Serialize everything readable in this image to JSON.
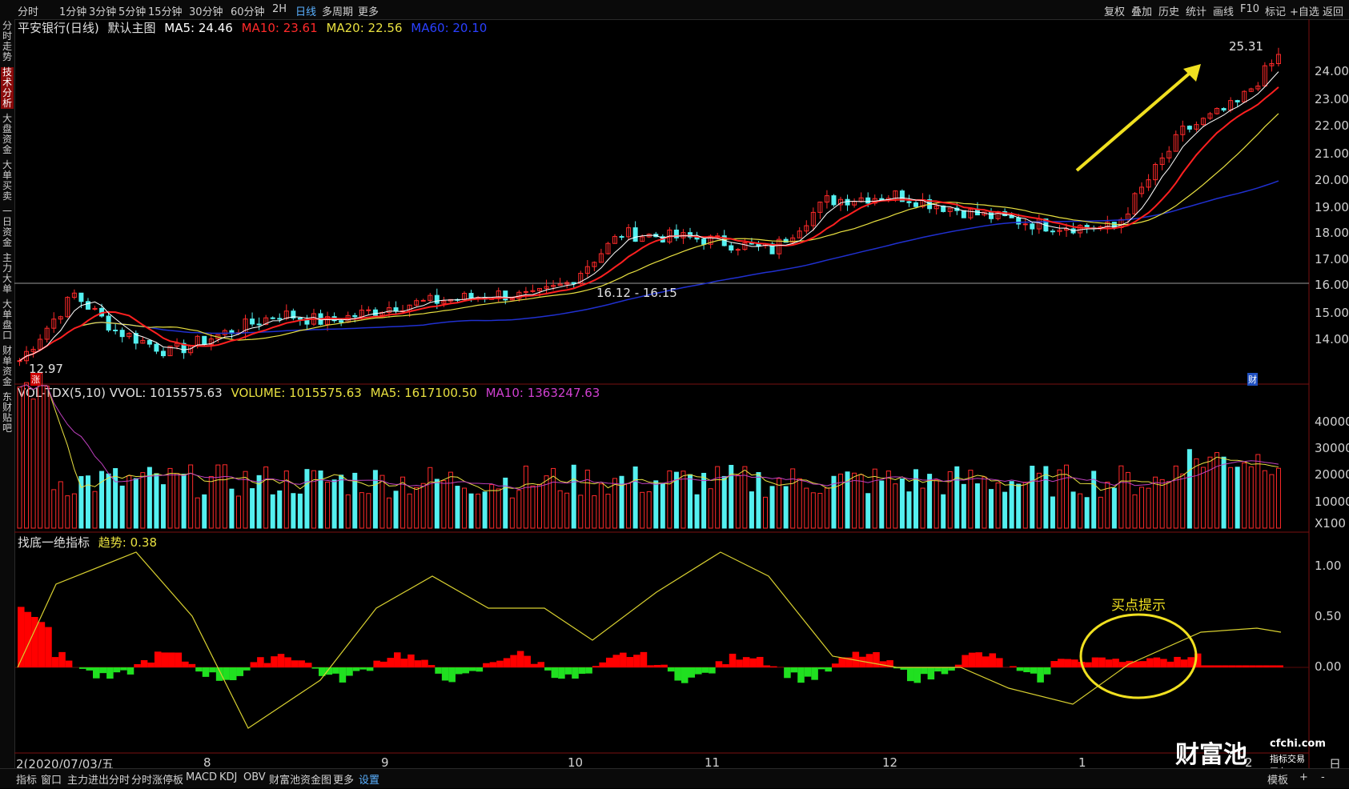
{
  "toolbar": {
    "periods": [
      "分时",
      "1分钟",
      "3分钟",
      "5分钟",
      "15分钟",
      "30分钟",
      "60分钟",
      "2H",
      "日线",
      "多周期",
      "更多"
    ],
    "active_period": "日线",
    "right_items": [
      "复权",
      "叠加",
      "历史",
      "统计",
      "画线",
      "F10",
      "标记",
      "+自选",
      "返回"
    ]
  },
  "left_tabs": [
    "分时走势",
    "技术分析",
    "大盘资金",
    "大单买卖",
    "一日资金",
    "主力大单",
    "大单盘口",
    "财单资金",
    "东财贴吧"
  ],
  "active_left_tab": "技术分析",
  "main_legend": {
    "title": "平安银行(日线)",
    "template": "默认主图",
    "ma5": "MA5: 24.46",
    "ma10": "MA10: 23.61",
    "ma20": "MA20: 22.56",
    "ma60": "MA60: 20.10"
  },
  "vol_legend": {
    "name": "VOL-TDX(5,10) VVOL: 1015575.63",
    "volume": "VOLUME: 1015575.63",
    "ma5": "MA5: 1617100.50",
    "ma10": "MA10: 1363247.63"
  },
  "ind_legend": {
    "name": "找底一绝指标",
    "trend": "趋势: 0.38"
  },
  "price_ticks": [
    "24.00",
    "23.00",
    "22.00",
    "21.00",
    "20.00",
    "19.00",
    "18.00",
    "17.00",
    "16.00",
    "15.00",
    "14.00"
  ],
  "vol_ticks": [
    "40000",
    "30000",
    "20000",
    "10000",
    "X100"
  ],
  "ind_ticks": [
    "1.00",
    "0.50",
    "0.00"
  ],
  "annotations": {
    "high": "25.31",
    "low": "12.97",
    "range": "16.12 - 16.15",
    "buy_hint": "买点提示",
    "zhang": "涨",
    "cai": "财"
  },
  "dates": [
    "2(2020/07/03/五",
    "8",
    "9",
    "10",
    "11",
    "12",
    "1",
    "2"
  ],
  "bottom_tabs": [
    "指标",
    "窗口",
    "主力进出分时",
    "分时涨停板",
    "MACD",
    "KDJ",
    "OBV",
    "财富池资金图",
    "更多",
    "设置"
  ],
  "bottom_right": [
    "模板",
    "+",
    "-"
  ],
  "right_side_label": "日线",
  "logo": {
    "brand": "财富池",
    "site": "cfchi.com",
    "slogan": "指标交易平台"
  },
  "colors": {
    "up": "#ff2a2a",
    "down": "#54f0f0",
    "ma5": "#ffffff",
    "ma10": "#ff2020",
    "ma20": "#e8e040",
    "ma60": "#2030d0",
    "ind_up": "#ff0000",
    "ind_down": "#20e020",
    "trend": "#d8d030"
  }
}
